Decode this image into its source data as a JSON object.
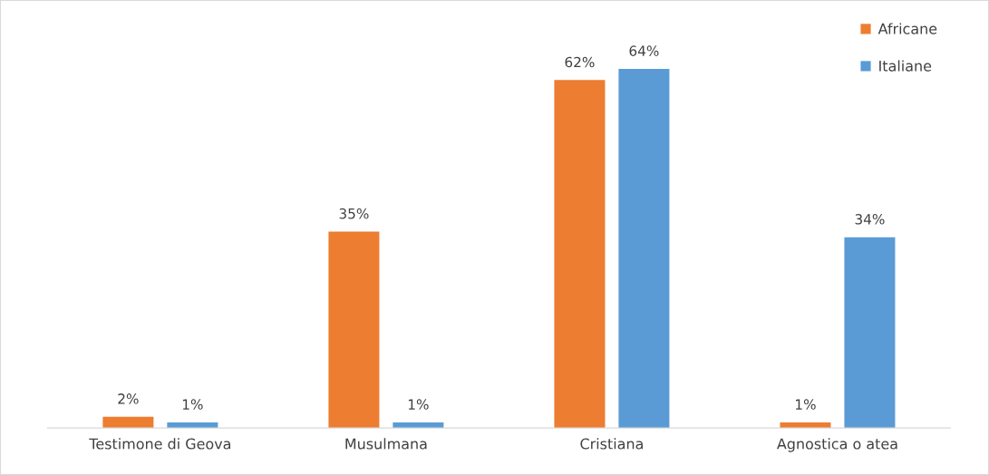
{
  "chart_data": {
    "type": "bar",
    "categories": [
      "Testimone di Geova",
      "Musulmana",
      "Cristiana",
      "Agnostica o atea"
    ],
    "series": [
      {
        "name": "Africane",
        "color": "#ed7d31",
        "values": [
          2,
          35,
          62,
          1
        ],
        "value_labels": [
          "2%",
          "35%",
          "62%",
          "1%"
        ]
      },
      {
        "name": "Italiane",
        "color": "#5b9bd5",
        "values": [
          1,
          1,
          64,
          34
        ],
        "value_labels": [
          "1%",
          "1%",
          "64%",
          "34%"
        ]
      }
    ],
    "legend": "top right",
    "grid": false
  }
}
